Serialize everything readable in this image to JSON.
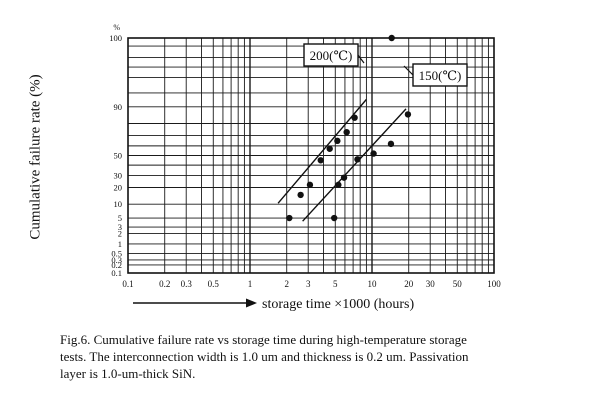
{
  "figure": {
    "xlabel": "storage time ×1000 (hours)",
    "ylabel": "Cumulative failure rate (%)",
    "caption_lines": [
      "Fig.6. Cumulative failure rate vs storage time during high-temperature storage",
      "tests. The interconnection width is 1.0 um and thickness is 0.2 um. Passivation",
      "layer is 1.0-um-thick SiN."
    ]
  },
  "chart_data": {
    "type": "scatter",
    "x_scale": "log",
    "y_scale": "probability",
    "xlabel": "storage time ×1000 (hours)",
    "ylabel": "Cumulative failure rate (%)",
    "xlim": [
      0.1,
      100
    ],
    "ylim": [
      0.1,
      99.9
    ],
    "grid": true,
    "x_ticks": [
      0.1,
      0.2,
      0.3,
      0.5,
      1,
      2,
      3,
      5,
      10,
      20,
      30,
      50,
      100
    ],
    "x_tick_labels": [
      "0.1",
      "0.2",
      "0.3",
      "0.5",
      "1",
      "2",
      "3",
      "5",
      "10",
      "20",
      "30",
      "50",
      "100"
    ],
    "y_ticks": [
      0.1,
      0.2,
      0.3,
      0.5,
      1,
      2,
      3,
      5,
      10,
      20,
      30,
      50,
      90,
      99.9
    ],
    "y_tick_labels": [
      "0.1",
      "0.2",
      "0.3",
      "0.5",
      "1",
      "2",
      "3",
      "5",
      "10",
      "20",
      "30",
      "50",
      "90",
      "100"
    ],
    "y_unit_label": "%",
    "series": [
      {
        "name": "200(℃)",
        "color": "#111111",
        "points": [
          [
            2.1,
            5
          ],
          [
            2.6,
            15
          ],
          [
            3.1,
            22
          ],
          [
            3.8,
            45
          ],
          [
            4.5,
            57
          ],
          [
            5.2,
            65
          ],
          [
            6.2,
            73
          ],
          [
            7.2,
            84
          ],
          [
            14.5,
            99.9
          ]
        ],
        "fit_line": [
          [
            1.7,
            10.5
          ],
          [
            9.0,
            93
          ]
        ]
      },
      {
        "name": "150(℃)",
        "color": "#111111",
        "points": [
          [
            4.9,
            5
          ],
          [
            5.3,
            22
          ],
          [
            5.9,
            28
          ],
          [
            7.6,
            46
          ],
          [
            10.3,
            52
          ],
          [
            14.3,
            62
          ],
          [
            19.7,
            86
          ]
        ],
        "fit_line": [
          [
            2.7,
            4.2
          ],
          [
            19,
            89
          ]
        ]
      }
    ],
    "annotations": [
      {
        "text": "200(℃)",
        "series": "200(℃)"
      },
      {
        "text": "150(℃)",
        "series": "150(℃)"
      }
    ]
  }
}
